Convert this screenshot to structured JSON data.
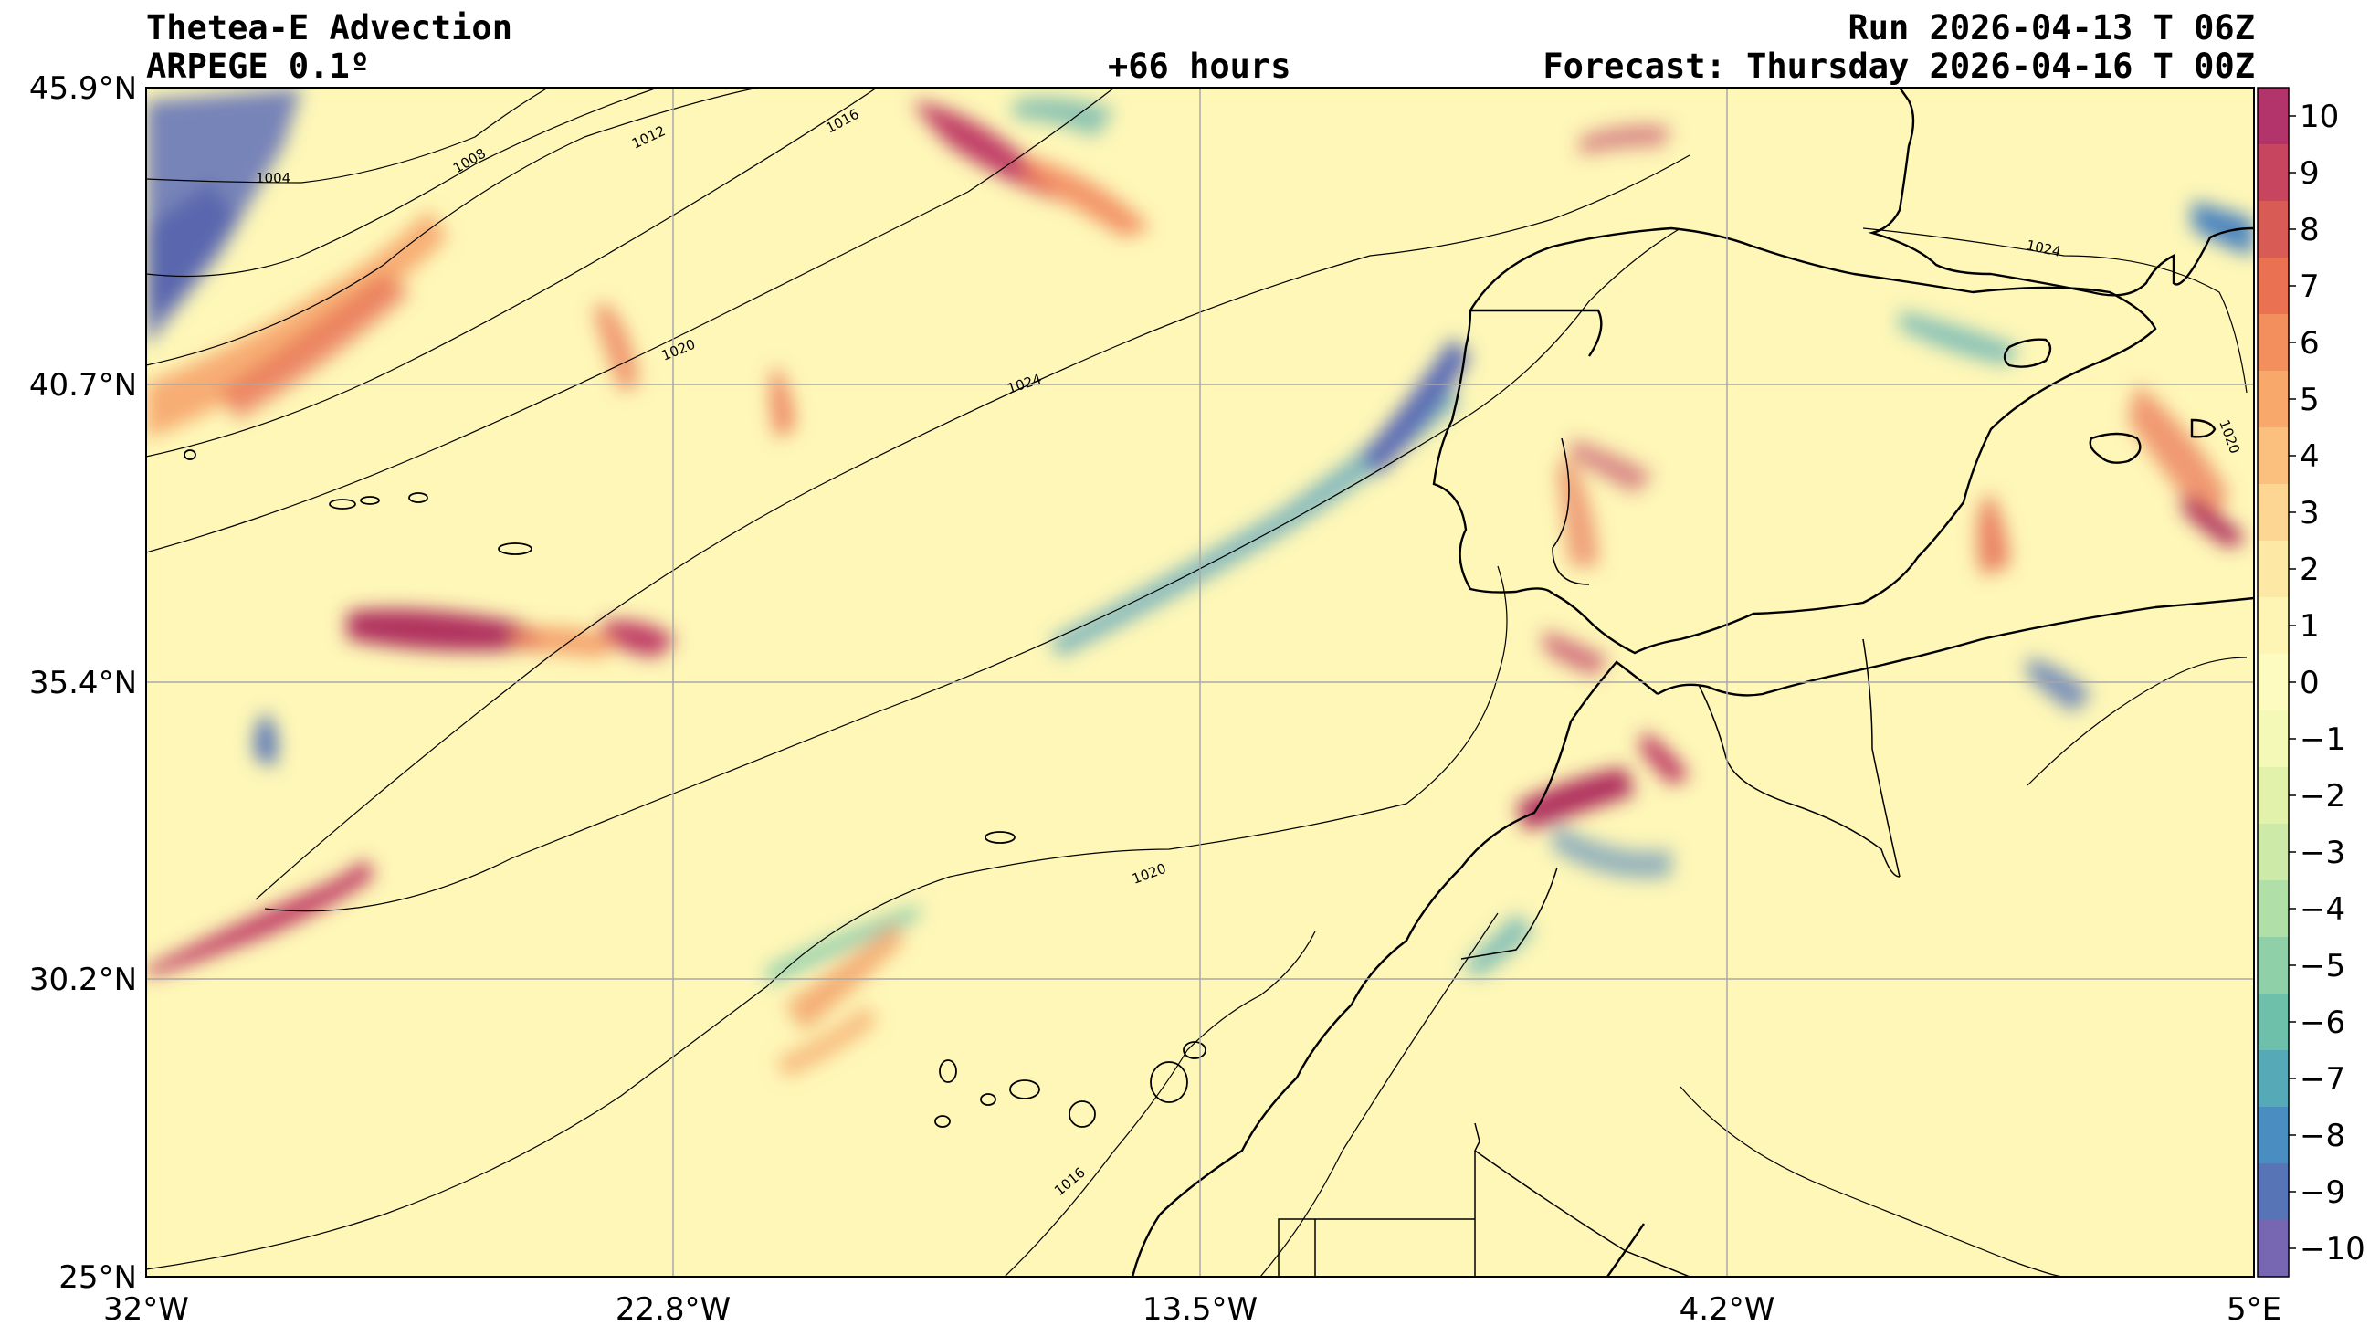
{
  "header": {
    "title": "Thetea-E Advection",
    "model": "ARPEGE 0.1º",
    "lead": "+66 hours",
    "run": "Run 2026-04-13 T 06Z",
    "forecast": "Forecast: Thursday 2026-04-16 T 00Z"
  },
  "axes": {
    "lon_labels": [
      "32°W",
      "22.8°W",
      "13.5°W",
      "4.2°W",
      "5°E"
    ],
    "lat_labels": [
      "45.9°N",
      "40.7°N",
      "35.4°N",
      "30.2°N",
      "25°N"
    ]
  },
  "colorbar": {
    "ticks": [
      "10",
      "9",
      "8",
      "7",
      "6",
      "5",
      "4",
      "3",
      "2",
      "1",
      "0",
      "−1",
      "−2",
      "−3",
      "−4",
      "−5",
      "−6",
      "−7",
      "−8",
      "−9",
      "−10"
    ],
    "colors_top_to_bottom": [
      "#b3336b",
      "#c8455f",
      "#d95b55",
      "#ea7152",
      "#f38f5c",
      "#f8a86a",
      "#fbc07d",
      "#fdd693",
      "#fde8a6",
      "#fef5b5",
      "#fefbc0",
      "#f4f9b8",
      "#e3f2ab",
      "#cdeaa8",
      "#b0dfa8",
      "#8fd0a9",
      "#6fc0ab",
      "#56a9b6",
      "#4a8ec1",
      "#5774b7",
      "#7766b2"
    ]
  },
  "isobars": [
    "1004",
    "1008",
    "1012",
    "1016",
    "1020",
    "1024",
    "1020",
    "1016",
    "1024",
    "1020"
  ]
}
